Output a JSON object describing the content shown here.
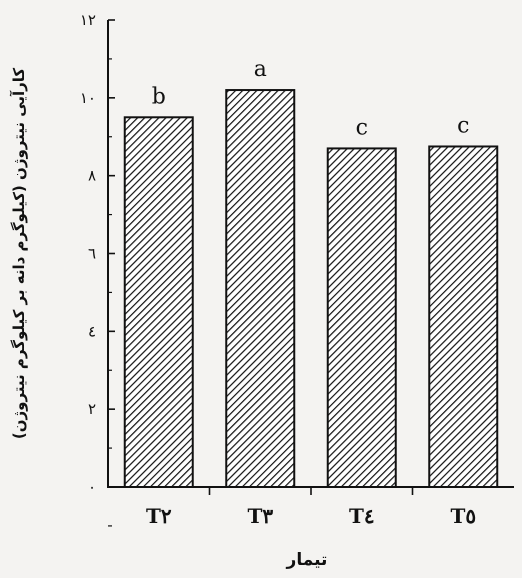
{
  "chart_data": {
    "type": "bar",
    "title": "",
    "xlabel": "تیمار",
    "ylabel": "کارآیی نیتروژن (کیلوگرم دانه بر کیلوگرم نیتروژن)",
    "categories": [
      "T۲",
      "T۳",
      "T٤",
      "T٥"
    ],
    "values": [
      9.5,
      10.2,
      8.7,
      8.75
    ],
    "significance_letters": [
      "b",
      "a",
      "c",
      "c"
    ],
    "ylim": [
      0,
      12
    ],
    "yticks": [
      0,
      2,
      4,
      6,
      8,
      10,
      12
    ],
    "ytick_labels": [
      "۰",
      "۲",
      "٤",
      "٦",
      "٨",
      "۱۰",
      "۱۲"
    ],
    "bar_fill": "hatched diagonal",
    "colors": {
      "bar_hatch": "#111111",
      "bar_bg": "#ffffff",
      "axis": "#111111",
      "background": "#f4f3f1"
    },
    "grid": false,
    "legend": "none"
  }
}
